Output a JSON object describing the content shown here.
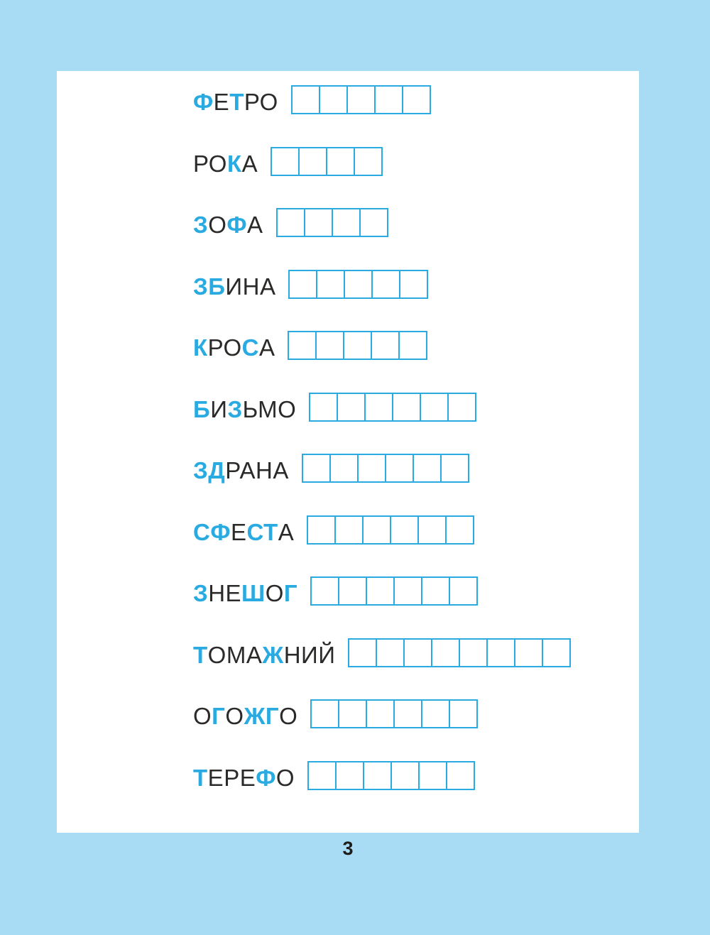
{
  "page": {
    "number": "3",
    "background_color": "#a8dcf4",
    "sheet_color": "#ffffff",
    "accent_blue": "#29abe2",
    "text_black": "#2b2a29"
  },
  "puzzle": {
    "rows": [
      {
        "word": "ФЕТРО",
        "blue_positions": [
          1,
          3
        ],
        "boxes": 5
      },
      {
        "word": "РОКА",
        "blue_positions": [
          3
        ],
        "boxes": 4
      },
      {
        "word": "ЗОФА",
        "blue_positions": [
          1,
          3
        ],
        "boxes": 4
      },
      {
        "word": "ЗБИНА",
        "blue_positions": [
          1,
          2
        ],
        "boxes": 5
      },
      {
        "word": "КРОСА",
        "blue_positions": [
          1,
          4
        ],
        "boxes": 5
      },
      {
        "word": "БИЗЬМО",
        "blue_positions": [
          1,
          3
        ],
        "boxes": 6
      },
      {
        "word": "ЗДРАНА",
        "blue_positions": [
          1,
          2
        ],
        "boxes": 6
      },
      {
        "word": "СФЕСТА",
        "blue_positions": [
          1,
          2,
          4,
          5
        ],
        "boxes": 6
      },
      {
        "word": "ЗНЕШОГ",
        "blue_positions": [
          1,
          4,
          6
        ],
        "boxes": 6
      },
      {
        "word": "ТОМАЖНИЙ",
        "blue_positions": [
          1,
          5
        ],
        "boxes": 8
      },
      {
        "word": "ОГОЖГО",
        "blue_positions": [
          2,
          4,
          5
        ],
        "boxes": 6
      },
      {
        "word": "ТЕРЕФО",
        "blue_positions": [
          1,
          5
        ],
        "boxes": 6
      }
    ]
  }
}
